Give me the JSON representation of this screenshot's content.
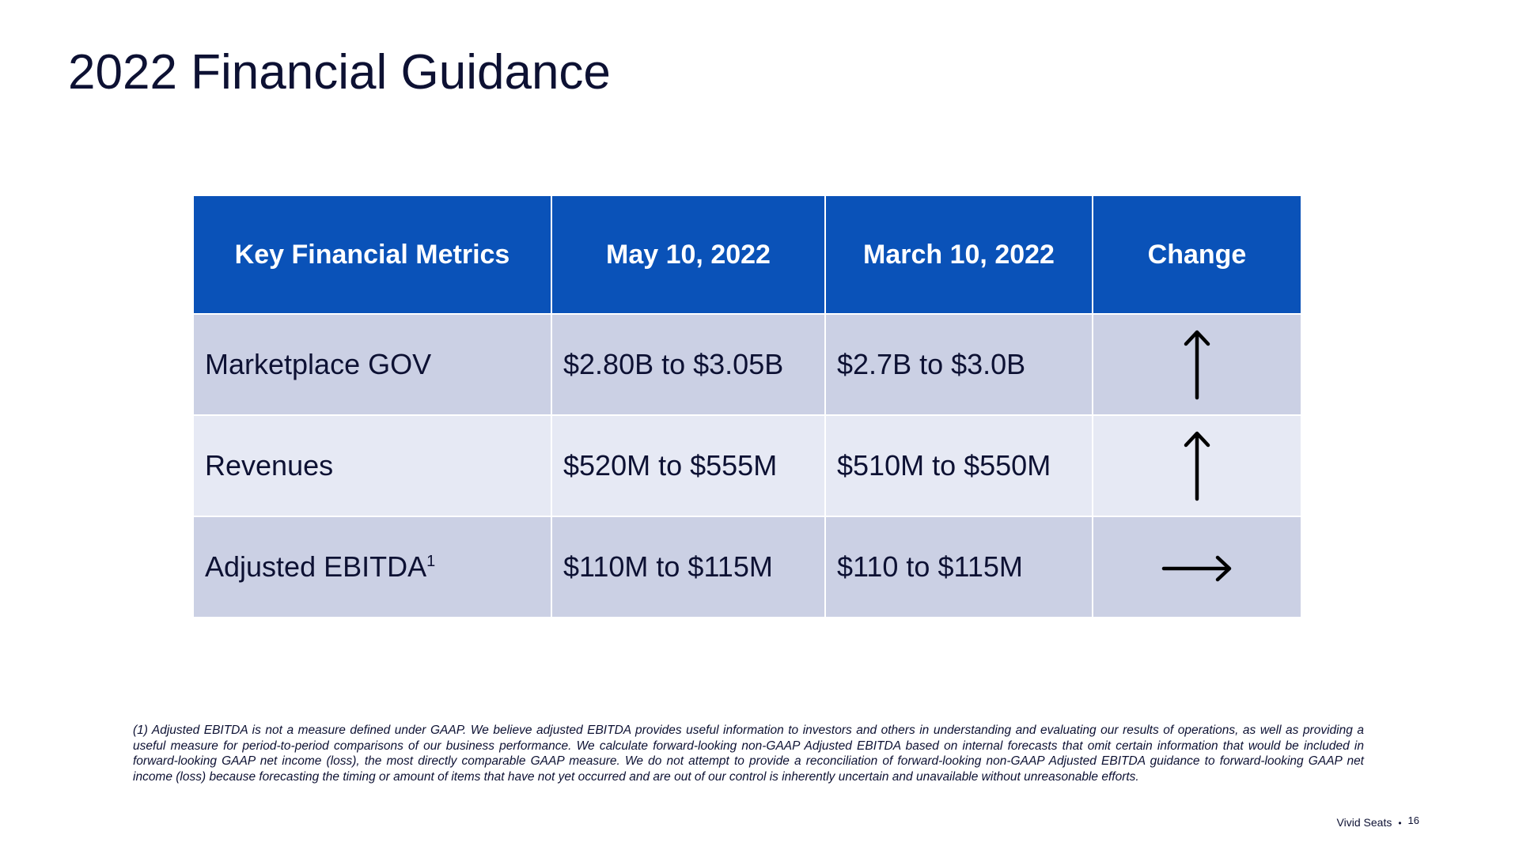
{
  "title": "2022 Financial Guidance",
  "table": {
    "headers": [
      "Key Financial Metrics",
      "May 10, 2022",
      "March 10, 2022",
      "Change"
    ],
    "rows": [
      {
        "metric": "Marketplace GOV",
        "metric_sup": "",
        "may": "$2.80B to $3.05B",
        "march": "$2.7B to $3.0B",
        "change": "up-arrow-icon"
      },
      {
        "metric": "Revenues",
        "metric_sup": "",
        "may": "$520M to $555M",
        "march": "$510M to $550M",
        "change": "up-arrow-icon"
      },
      {
        "metric": "Adjusted EBITDA",
        "metric_sup": "1",
        "may": "$110M to $115M",
        "march": "$110 to $115M",
        "change": "right-arrow-icon"
      }
    ]
  },
  "footnote": "(1) Adjusted EBITDA is not a measure defined under GAAP. We believe adjusted EBITDA provides useful information to investors and others in understanding and evaluating our results of operations, as well as providing a useful measure for period-to-period comparisons of our business performance. We calculate forward-looking non-GAAP Adjusted EBITDA based on internal forecasts that omit certain information that would be included in forward-looking GAAP net income (loss), the most directly comparable GAAP measure.  We do not attempt to provide a reconciliation of forward-looking non-GAAP Adjusted EBITDA guidance to forward-looking GAAP net income (loss) because forecasting the timing or amount of items that have not yet occurred and are out of our control is inherently uncertain and unavailable without unreasonable efforts.",
  "footer": {
    "brand": "Vivid Seats",
    "separator": "•",
    "page_number": "16"
  },
  "colors": {
    "header_bg": "#0a52b8",
    "row_dark": "#cbd0e4",
    "row_light": "#e6e9f4",
    "text": "#0d1133"
  }
}
